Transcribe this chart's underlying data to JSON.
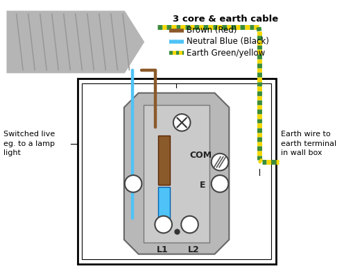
{
  "title": "3 core & earth cable",
  "legend_items": [
    {
      "label": "Brown (Red)",
      "color": "#8B5A2B"
    },
    {
      "label": "Neutral Blue (Black)",
      "color": "#4FC3F7"
    },
    {
      "label": "Earth Green/yellow",
      "color": "earth"
    }
  ],
  "left_label_line1": "Switched live",
  "left_label_line2": "eg. to a lamp",
  "left_label_line3": "light",
  "right_label_line1": "Earth wire to",
  "right_label_line2": "earth terminal",
  "right_label_line3": "in wall box",
  "com_label": "COM",
  "e_label": "E",
  "l1_label": "L1",
  "l2_label": "L2",
  "bg_color": "#ffffff",
  "brown_color": "#8B5A2B",
  "blue_color": "#4FC3F7",
  "earth_green": "#3A8C3A",
  "earth_yellow": "#F5D800",
  "switch_gray": "#b8b8b8",
  "switch_dark": "#888888",
  "inner_gray": "#cacaca"
}
